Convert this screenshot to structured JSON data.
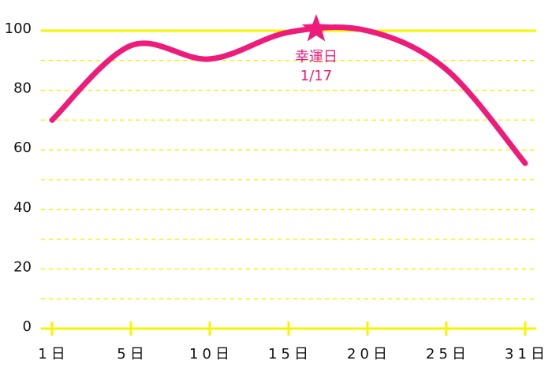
{
  "chart_data": {
    "type": "line",
    "categories": [
      "1日",
      "5日",
      "10日",
      "15日",
      "20日",
      "25日",
      "31日"
    ],
    "values": [
      70,
      95,
      90.5,
      99.5,
      100,
      87,
      55.5
    ],
    "color": "#ee1b7b",
    "ylim": [
      0,
      100
    ],
    "yticks": [
      0,
      20,
      40,
      60,
      80,
      100
    ],
    "minor_yticks": [
      10,
      30,
      50,
      70,
      90
    ],
    "grid": true,
    "grid_color": "#f5f500",
    "annotation": {
      "label": "幸運日",
      "date": "1/17",
      "value": 100
    }
  }
}
